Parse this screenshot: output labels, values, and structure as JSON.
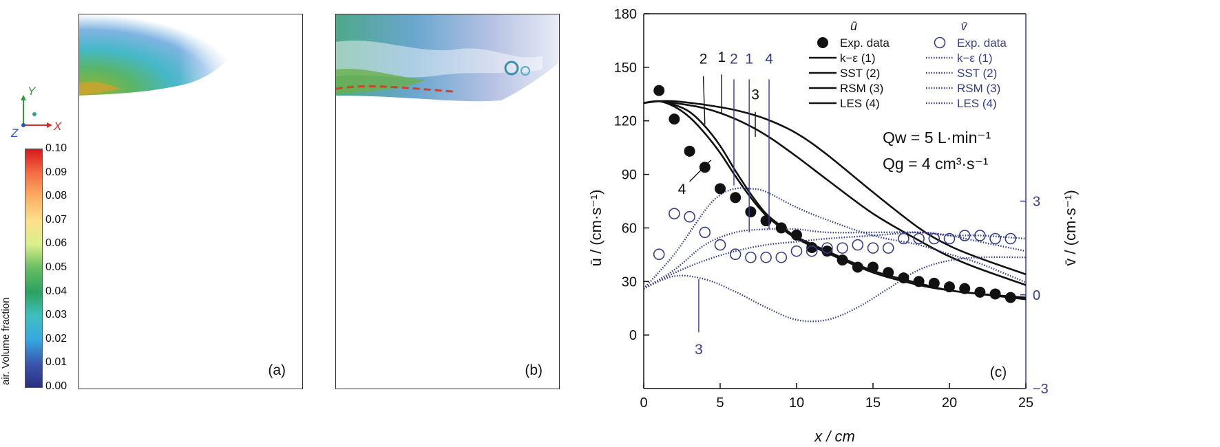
{
  "panels": {
    "a": {
      "label": "(a)"
    },
    "b": {
      "label": "(b)"
    }
  },
  "colorbar": {
    "label": "air. Volume fraction",
    "ticks": [
      "0.10",
      "0.09",
      "0.08",
      "0.07",
      "0.06",
      "0.05",
      "0.04",
      "0.03",
      "0.02",
      "0.01",
      "0.00"
    ],
    "colors": [
      "#d7191c",
      "#f46d43",
      "#fdae61",
      "#fee08b",
      "#d9ef8b",
      "#66bd63",
      "#2ca25f",
      "#3fbfbf",
      "#36a8e0",
      "#3a56b0",
      "#2b2f7f"
    ]
  },
  "axes_triad": {
    "y": "Y",
    "x": "X",
    "z": "Z"
  },
  "chart_data": {
    "type": "line",
    "panel_label": "(c)",
    "xlabel": "x / cm",
    "ylabel_left": "ū / (cm·s⁻¹)",
    "ylabel_right": "v̄ / (cm·s⁻¹)",
    "xlim": [
      0,
      25
    ],
    "ylim_left": [
      -30,
      180
    ],
    "ylim_right": [
      -3,
      9
    ],
    "xticks": [
      "0",
      "5",
      "10",
      "15",
      "20",
      "25"
    ],
    "yticks_left": [
      "0",
      "30",
      "60",
      "90",
      "120",
      "150",
      "180"
    ],
    "yticks_right": [
      "−3",
      "0",
      "3"
    ],
    "legend_headers": {
      "u": "ū",
      "v": "v̄"
    },
    "conditions": [
      "Qw = 5 L·min⁻¹",
      "Qg = 4 cm³·s⁻¹"
    ],
    "u_exp": {
      "name": "Exp. data",
      "x": [
        1,
        2,
        3,
        4,
        5,
        6,
        7,
        8,
        9,
        10,
        11,
        12,
        13,
        14,
        15,
        16,
        17,
        18,
        19,
        20,
        21,
        22,
        23,
        24
      ],
      "y": [
        137,
        121,
        103,
        94,
        82,
        77,
        69,
        64,
        60,
        56,
        49,
        47,
        42,
        38,
        38,
        35,
        32,
        30,
        29,
        27,
        26,
        24,
        23,
        21
      ]
    },
    "u_series": [
      {
        "name": "k−ε (1)",
        "x": [
          0,
          1,
          2,
          4,
          6,
          8,
          10,
          12,
          15,
          18,
          20,
          22,
          25
        ],
        "y": [
          130,
          131,
          130,
          127,
          121,
          112,
          100,
          87,
          68,
          53,
          44,
          37,
          28
        ]
      },
      {
        "name": "SST (2)",
        "x": [
          0,
          1,
          2,
          3,
          4,
          5,
          6,
          7,
          8,
          9,
          10,
          12,
          15,
          18,
          20,
          22,
          25
        ],
        "y": [
          130,
          131,
          129,
          125,
          117,
          106,
          92,
          79,
          68,
          61,
          55,
          47,
          36,
          29,
          25,
          23,
          21
        ]
      },
      {
        "name": "RSM (3)",
        "x": [
          0,
          1,
          2,
          4,
          6,
          8,
          10,
          12,
          15,
          18,
          20,
          22,
          25
        ],
        "y": [
          130,
          131,
          131,
          129,
          126,
          121,
          113,
          101,
          80,
          60,
          50,
          43,
          34
        ]
      },
      {
        "name": "LES (4)",
        "x": [
          0,
          1,
          2,
          3,
          4,
          5,
          6,
          7,
          8,
          9,
          10,
          12,
          15,
          18,
          20,
          22,
          25
        ],
        "y": [
          130,
          131,
          128,
          122,
          113,
          102,
          89,
          77,
          67,
          60,
          54,
          46,
          35,
          28,
          25,
          23,
          20
        ]
      }
    ],
    "v_exp": {
      "name": "Exp. data",
      "x": [
        1,
        2,
        3,
        4,
        5,
        6,
        7,
        8,
        9,
        10,
        11,
        12,
        13,
        14,
        15,
        16,
        17,
        18,
        19,
        20,
        21,
        22,
        23,
        24
      ],
      "y": [
        1.3,
        2.6,
        2.5,
        2.0,
        1.6,
        1.3,
        1.2,
        1.2,
        1.2,
        1.4,
        1.4,
        1.5,
        1.5,
        1.6,
        1.5,
        1.5,
        1.8,
        1.8,
        1.8,
        1.8,
        1.9,
        1.9,
        1.8,
        1.8
      ]
    },
    "v_series": [
      {
        "name": "k−ε (1)",
        "x": [
          0,
          2,
          4,
          6,
          8,
          10,
          12,
          15,
          18,
          20,
          22,
          25
        ],
        "y": [
          0.2,
          0.8,
          1.6,
          2.0,
          2.1,
          2.1,
          2.0,
          2.0,
          2.0,
          1.9,
          1.9,
          1.8
        ]
      },
      {
        "name": "SST (2)",
        "x": [
          0,
          2,
          4,
          5,
          6,
          7,
          8,
          10,
          12,
          15,
          18,
          20,
          22,
          25
        ],
        "y": [
          0.2,
          1.3,
          2.7,
          3.2,
          3.4,
          3.4,
          3.3,
          2.8,
          2.4,
          1.9,
          1.6,
          1.3,
          1.0,
          0.4
        ]
      },
      {
        "name": "RSM (3)",
        "x": [
          0,
          2,
          4,
          6,
          8,
          10,
          12,
          14,
          16,
          18,
          20,
          22,
          25
        ],
        "y": [
          0.2,
          0.6,
          0.5,
          0.1,
          -0.4,
          -0.8,
          -0.8,
          -0.4,
          0.2,
          0.8,
          1.1,
          1.2,
          1.2
        ]
      },
      {
        "name": "LES (4)",
        "x": [
          0,
          2,
          4,
          6,
          8,
          10,
          12,
          15,
          18,
          20,
          22,
          25
        ],
        "y": [
          0.2,
          0.7,
          1.1,
          1.4,
          1.6,
          1.7,
          1.8,
          1.9,
          2.0,
          1.9,
          1.7,
          1.4
        ]
      }
    ],
    "curve_labels_u": [
      "2",
      "1",
      "3",
      "4"
    ],
    "curve_labels_v": [
      "2",
      "1",
      "4",
      "3"
    ],
    "colors": {
      "u": "#111111",
      "v": "#343d8c"
    }
  }
}
